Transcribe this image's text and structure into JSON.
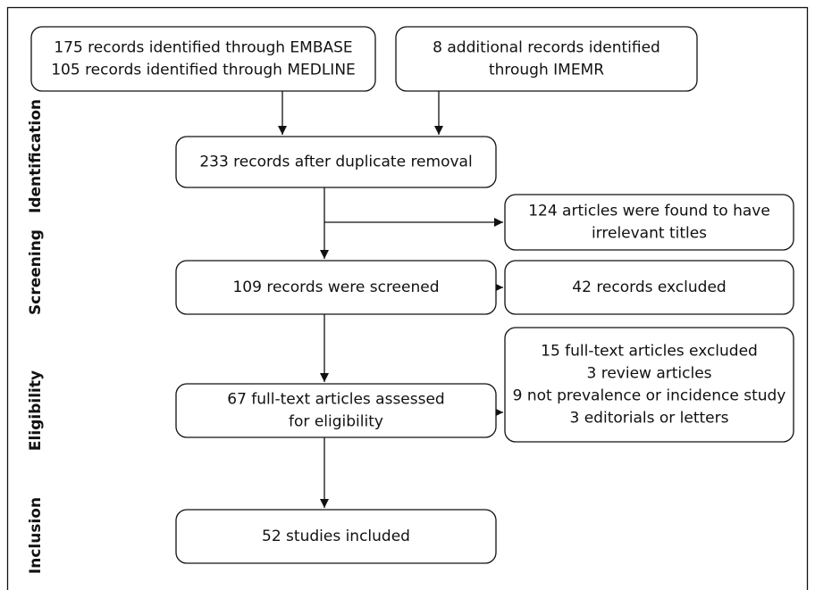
{
  "stages": [
    "Identification",
    "Screening",
    "Eligibility",
    "Inclusion"
  ],
  "nodes": [
    {
      "lines": [
        "175 records identified through EMBASE",
        "105 records identified through MEDLINE"
      ]
    },
    {
      "lines": [
        "8 additional records identified",
        "through IMEMR"
      ]
    },
    {
      "lines": [
        "233 records after duplicate removal"
      ]
    },
    {
      "lines": [
        "124 articles were found to have",
        "irrelevant titles"
      ]
    },
    {
      "lines": [
        "109 records were screened"
      ]
    },
    {
      "lines": [
        "42 records excluded"
      ]
    },
    {
      "lines": [
        "67 full-text articles assessed",
        "for eligibility"
      ]
    },
    {
      "lines": [
        "15 full-text articles excluded",
        "3 review articles",
        "9 not prevalence or incidence study",
        "3 editorials or letters"
      ]
    },
    {
      "lines": [
        "52 studies included"
      ]
    }
  ]
}
